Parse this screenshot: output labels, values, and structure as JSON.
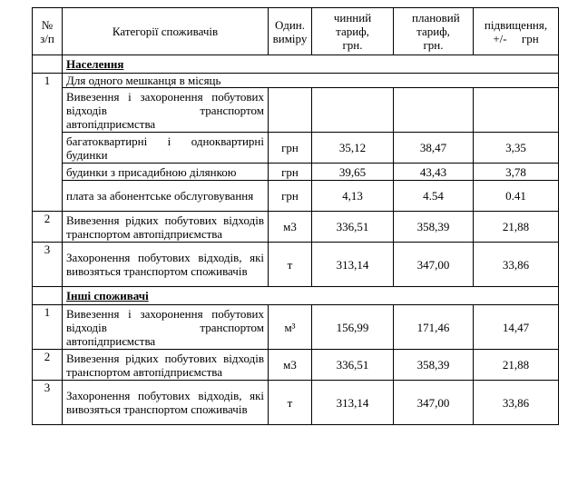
{
  "header": {
    "num": "№ з/п",
    "category": "Категорії споживачів",
    "unit": "Один. виміру",
    "current": "чинний тариф, грн.",
    "planned": "плановий тариф, грн.",
    "increase": "підвищення, +/-     грн"
  },
  "sections": [
    {
      "title": "Населення",
      "rows": [
        {
          "num": "1",
          "category": "Для одного мешканця в місяць",
          "span": true
        },
        {
          "num": "",
          "category": "Вивезення і захоронення побутових відходів транспортом автопідприємства",
          "unit": "",
          "current": "",
          "planned": "",
          "increase": ""
        },
        {
          "num": "",
          "category": "багатоквартирні і одноквартирні будинки",
          "unit": "грн",
          "current": "35,12",
          "planned": "38,47",
          "increase": "3,35"
        },
        {
          "num": "",
          "category": "будинки з присадибною ділянкою",
          "unit": "грн",
          "current": "39,65",
          "planned": "43,43",
          "increase": "3,78"
        },
        {
          "num": "",
          "category": "плата за абонентське обслуговування",
          "unit": "грн",
          "current": "4,13",
          "planned": "4.54",
          "increase": "0.41"
        },
        {
          "num": "2",
          "category": "Вивезення рідких побутових відходів транспортом автопідприємства",
          "unit": "м3",
          "current": "336,51",
          "planned": "358,39",
          "increase": "21,88"
        },
        {
          "num": "3",
          "category": "Захоронення побутових відходів, які вивозяться транспортом споживачів",
          "unit": "т",
          "current": "313,14",
          "planned": "347,00",
          "increase": "33,86"
        }
      ]
    },
    {
      "title": "Інші споживачі",
      "rows": [
        {
          "num": "1",
          "category": "Вивезення і захоронення побутових відходів транспортом автопідприємства",
          "unit": "м³",
          "current": "156,99",
          "planned": "171,46",
          "increase": "14,47"
        },
        {
          "num": "2",
          "category": "Вивезення рідких побутових відходів транспортом автопідприємства",
          "unit": "м3",
          "current": "336,51",
          "planned": "358,39",
          "increase": "21,88"
        },
        {
          "num": "3",
          "category": "Захоронення побутових відходів, які вивозяться транспортом споживачів",
          "unit": "т",
          "current": "313,14",
          "planned": "347,00",
          "increase": "33,86"
        }
      ]
    }
  ]
}
